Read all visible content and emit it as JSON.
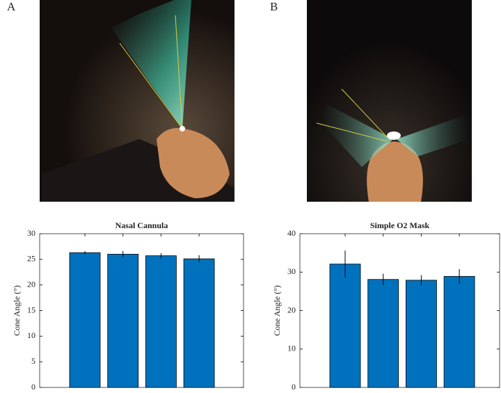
{
  "panel_labels": [
    "A",
    "B"
  ],
  "chart_data": [
    {
      "type": "bar",
      "title": "Nasal Cannula",
      "ylabel": "Cone Angle (°)",
      "categories": [
        null,
        null,
        null,
        null
      ],
      "values": [
        26.3,
        26.0,
        25.7,
        25.1
      ],
      "errors": [
        0.3,
        0.6,
        0.5,
        0.7
      ],
      "color": "#0072bd",
      "ylim": [
        0,
        30
      ],
      "yticks": [
        0,
        5,
        10,
        15,
        20,
        25,
        30
      ]
    },
    {
      "type": "bar",
      "title": "Simple O2 Mask",
      "ylabel": "Cone Angle (°)",
      "categories": [
        null,
        null,
        null,
        null
      ],
      "values": [
        32.1,
        28.1,
        27.9,
        28.9
      ],
      "errors": [
        3.5,
        1.5,
        1.3,
        1.9
      ],
      "color": "#0072bd",
      "ylim": [
        0,
        40
      ],
      "yticks": [
        0,
        10,
        20,
        30,
        40
      ]
    }
  ]
}
